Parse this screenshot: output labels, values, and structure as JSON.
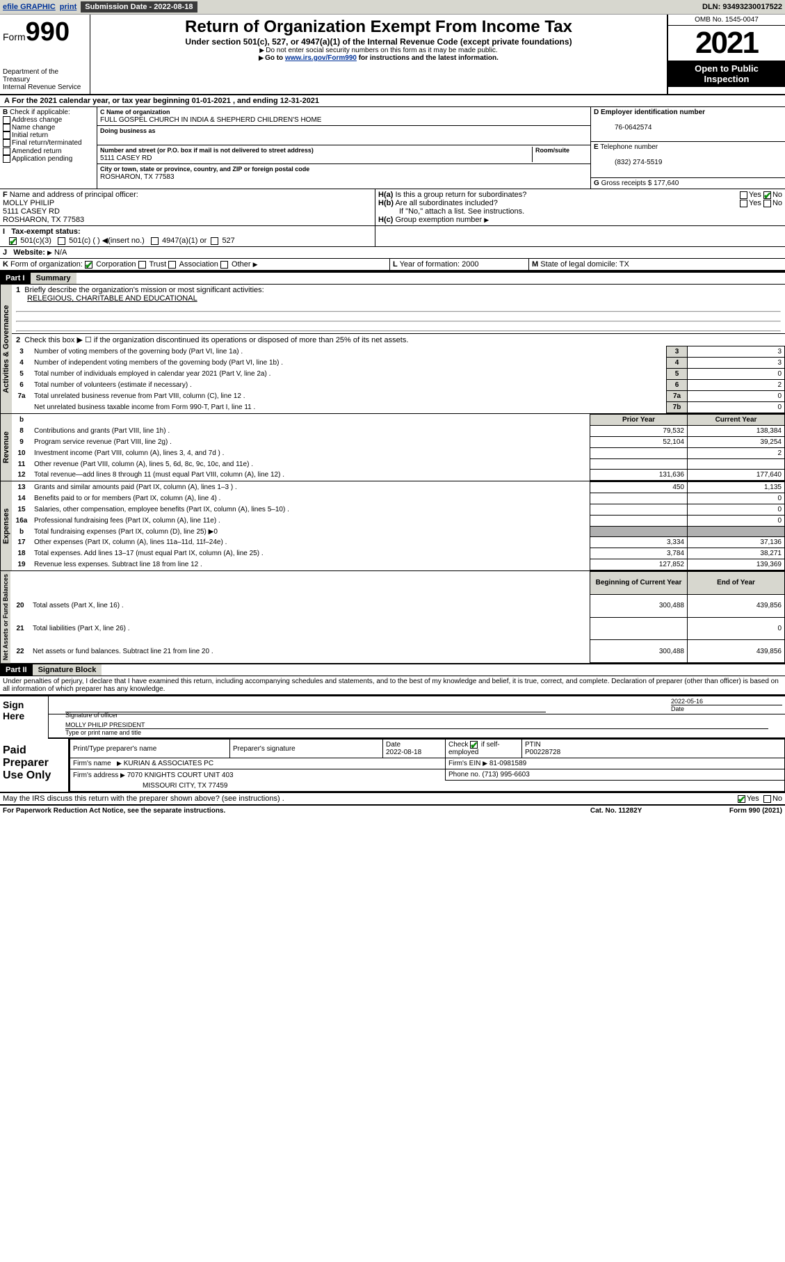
{
  "topbar": {
    "efile": "efile GRAPHIC",
    "print": "print",
    "sub_label": "Submission Date - 2022-08-18",
    "dln": "DLN: 93493230017522"
  },
  "header": {
    "form_word": "Form",
    "form_num": "990",
    "dept": "Department of the Treasury",
    "irs": "Internal Revenue Service",
    "title": "Return of Organization Exempt From Income Tax",
    "subtitle": "Under section 501(c), 527, or 4947(a)(1) of the Internal Revenue Code (except private foundations)",
    "note1": "Do not enter social security numbers on this form as it may be made public.",
    "note2_pre": "Go to ",
    "note2_link": "www.irs.gov/Form990",
    "note2_post": " for instructions and the latest information.",
    "omb": "OMB No. 1545-0047",
    "year": "2021",
    "inspect": "Open to Public Inspection"
  },
  "A": {
    "text": "For the 2021 calendar year, or tax year beginning 01-01-2021   , and ending 12-31-2021"
  },
  "B": {
    "label": "Check if applicable:",
    "opts": [
      "Address change",
      "Name change",
      "Initial return",
      "Final return/terminated",
      "Amended return",
      "Application pending"
    ]
  },
  "C": {
    "name_lab": "Name of organization",
    "name": "FULL GOSPEL CHURCH IN INDIA & SHEPHERD CHILDREN'S HOME",
    "dba_lab": "Doing business as",
    "addr_lab": "Number and street (or P.O. box if mail is not delivered to street address)",
    "room_lab": "Room/suite",
    "addr": "5111 CASEY RD",
    "city_lab": "City or town, state or province, country, and ZIP or foreign postal code",
    "city": "ROSHARON, TX  77583"
  },
  "D": {
    "lab": "Employer identification number",
    "val": "76-0642574"
  },
  "E": {
    "lab": "Telephone number",
    "val": "(832) 274-5519"
  },
  "G": {
    "lab": "Gross receipts $",
    "val": "177,640"
  },
  "F": {
    "lab": "Name and address of principal officer:",
    "name": "MOLLY PHILIP",
    "addr1": "5111 CASEY RD",
    "addr2": "ROSHARON, TX  77583"
  },
  "H": {
    "a": "Is this a group return for subordinates?",
    "b": "Are all subordinates included?",
    "b_note": "If \"No,\" attach a list. See instructions.",
    "c": "Group exemption number"
  },
  "I": {
    "lab": "Tax-exempt status:",
    "c3": "501(c)(3)",
    "c": "501(c) (   )",
    "ins": "(insert no.)",
    "a1": "4947(a)(1) or",
    "s527": "527"
  },
  "J": {
    "lab": "Website:",
    "val": "N/A"
  },
  "K": {
    "lab": "Form of organization:",
    "corp": "Corporation",
    "trust": "Trust",
    "assoc": "Association",
    "other": "Other"
  },
  "L": {
    "lab": "Year of formation:",
    "val": "2000"
  },
  "M": {
    "lab": "State of legal domicile:",
    "val": "TX"
  },
  "part1": {
    "hdr": "Part I",
    "title": "Summary",
    "l1_lab": "Briefly describe the organization's mission or most significant activities:",
    "l1_val": "RELEGIOUS, CHARITABLE AND EDUCATIONAL",
    "l2": "Check this box ▶ ☐  if the organization discontinued its operations or disposed of more than 25% of its net assets.",
    "rows_gov": [
      {
        "n": "3",
        "d": "Number of voting members of the governing body (Part VI, line 1a)",
        "r": "3",
        "v": "3"
      },
      {
        "n": "4",
        "d": "Number of independent voting members of the governing body (Part VI, line 1b)",
        "r": "4",
        "v": "3"
      },
      {
        "n": "5",
        "d": "Total number of individuals employed in calendar year 2021 (Part V, line 2a)",
        "r": "5",
        "v": "0"
      },
      {
        "n": "6",
        "d": "Total number of volunteers (estimate if necessary)",
        "r": "6",
        "v": "2"
      },
      {
        "n": "7a",
        "d": "Total unrelated business revenue from Part VIII, column (C), line 12",
        "r": "7a",
        "v": "0"
      },
      {
        "n": "",
        "d": "Net unrelated business taxable income from Form 990-T, Part I, line 11",
        "r": "7b",
        "v": "0"
      }
    ],
    "col_prior": "Prior Year",
    "col_curr": "Current Year",
    "rows_rev": [
      {
        "n": "8",
        "d": "Contributions and grants (Part VIII, line 1h)",
        "p": "79,532",
        "c": "138,384"
      },
      {
        "n": "9",
        "d": "Program service revenue (Part VIII, line 2g)",
        "p": "52,104",
        "c": "39,254"
      },
      {
        "n": "10",
        "d": "Investment income (Part VIII, column (A), lines 3, 4, and 7d )",
        "p": "",
        "c": "2"
      },
      {
        "n": "11",
        "d": "Other revenue (Part VIII, column (A), lines 5, 6d, 8c, 9c, 10c, and 11e)",
        "p": "",
        "c": ""
      },
      {
        "n": "12",
        "d": "Total revenue—add lines 8 through 11 (must equal Part VIII, column (A), line 12)",
        "p": "131,636",
        "c": "177,640"
      }
    ],
    "rows_exp": [
      {
        "n": "13",
        "d": "Grants and similar amounts paid (Part IX, column (A), lines 1–3 )",
        "p": "450",
        "c": "1,135"
      },
      {
        "n": "14",
        "d": "Benefits paid to or for members (Part IX, column (A), line 4)",
        "p": "",
        "c": "0"
      },
      {
        "n": "15",
        "d": "Salaries, other compensation, employee benefits (Part IX, column (A), lines 5–10)",
        "p": "",
        "c": "0"
      },
      {
        "n": "16a",
        "d": "Professional fundraising fees (Part IX, column (A), line 11e)",
        "p": "",
        "c": "0"
      },
      {
        "n": "b",
        "d": "Total fundraising expenses (Part IX, column (D), line 25) ▶0",
        "p": "GREY",
        "c": "GREY"
      },
      {
        "n": "17",
        "d": "Other expenses (Part IX, column (A), lines 11a–11d, 11f–24e)",
        "p": "3,334",
        "c": "37,136"
      },
      {
        "n": "18",
        "d": "Total expenses. Add lines 13–17 (must equal Part IX, column (A), line 25)",
        "p": "3,784",
        "c": "38,271"
      },
      {
        "n": "19",
        "d": "Revenue less expenses. Subtract line 18 from line 12",
        "p": "127,852",
        "c": "139,369"
      }
    ],
    "col_boy": "Beginning of Current Year",
    "col_eoy": "End of Year",
    "rows_net": [
      {
        "n": "20",
        "d": "Total assets (Part X, line 16)",
        "p": "300,488",
        "c": "439,856"
      },
      {
        "n": "21",
        "d": "Total liabilities (Part X, line 26)",
        "p": "",
        "c": "0"
      },
      {
        "n": "22",
        "d": "Net assets or fund balances. Subtract line 21 from line 20",
        "p": "300,488",
        "c": "439,856"
      }
    ],
    "vtext_gov": "Activities & Governance",
    "vtext_rev": "Revenue",
    "vtext_exp": "Expenses",
    "vtext_net": "Net Assets or Fund Balances"
  },
  "part2": {
    "hdr": "Part II",
    "title": "Signature Block",
    "decl": "Under penalties of perjury, I declare that I have examined this return, including accompanying schedules and statements, and to the best of my knowledge and belief, it is true, correct, and complete. Declaration of preparer (other than officer) is based on all information of which preparer has any knowledge."
  },
  "sign": {
    "here": "Sign Here",
    "sig_lab": "Signature of officer",
    "date": "2022-05-16",
    "date_lab": "Date",
    "name": "MOLLY PHILIP  PRESIDENT",
    "name_lab": "Type or print name and title"
  },
  "prep": {
    "title": "Paid Preparer Use Only",
    "c1": "Print/Type preparer's name",
    "c2": "Preparer's signature",
    "c3": "Date",
    "c3v": "2022-08-18",
    "c4": "Check",
    "c4b": "if self-employed",
    "c5": "PTIN",
    "c5v": "P00228728",
    "firm_lab": "Firm's name",
    "firm": "KURIAN & ASSOCIATES PC",
    "ein_lab": "Firm's EIN",
    "ein": "81-0981589",
    "addr_lab": "Firm's address",
    "addr1": "7070 KNIGHTS COURT UNIT 403",
    "addr2": "MISSOURI CITY, TX  77459",
    "ph_lab": "Phone no.",
    "ph": "(713) 995-6603"
  },
  "discuss": "May the IRS discuss this return with the preparer shown above? (see instructions)",
  "footer": {
    "left": "For Paperwork Reduction Act Notice, see the separate instructions.",
    "mid": "Cat. No. 11282Y",
    "right": "Form 990 (2021)"
  },
  "yn": {
    "yes": "Yes",
    "no": "No"
  },
  "colors": {
    "bg_grey": "#d7d7cf",
    "link": "#003399",
    "check": "#0a8a0a"
  }
}
